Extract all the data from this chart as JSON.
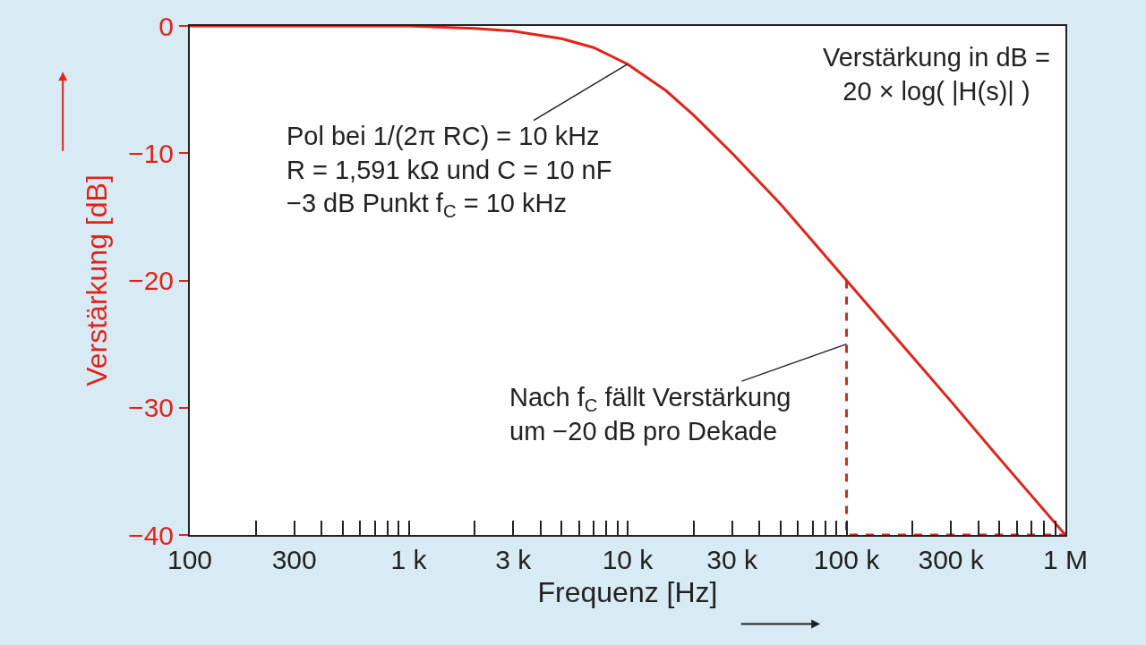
{
  "chart_data": {
    "type": "line",
    "xlabel": "Frequenz [Hz]",
    "ylabel": "Verstärkung [dB]",
    "log": "x",
    "legend": false,
    "marker": "none",
    "xlim": [
      100,
      1000000
    ],
    "ylim": [
      -40,
      0
    ],
    "xticks": [
      {
        "value": 100,
        "label": "100"
      },
      {
        "value": 200,
        "label": null
      },
      {
        "value": 300,
        "label": "300"
      },
      {
        "value": 400,
        "label": null
      },
      {
        "value": 500,
        "label": null
      },
      {
        "value": 600,
        "label": null
      },
      {
        "value": 700,
        "label": null
      },
      {
        "value": 800,
        "label": null
      },
      {
        "value": 900,
        "label": null
      },
      {
        "value": 1000,
        "label": "1 k"
      },
      {
        "value": 2000,
        "label": null
      },
      {
        "value": 3000,
        "label": "3 k"
      },
      {
        "value": 4000,
        "label": null
      },
      {
        "value": 5000,
        "label": null
      },
      {
        "value": 6000,
        "label": null
      },
      {
        "value": 7000,
        "label": null
      },
      {
        "value": 8000,
        "label": null
      },
      {
        "value": 9000,
        "label": null
      },
      {
        "value": 10000,
        "label": "10 k"
      },
      {
        "value": 20000,
        "label": null
      },
      {
        "value": 30000,
        "label": "30 k"
      },
      {
        "value": 40000,
        "label": null
      },
      {
        "value": 50000,
        "label": null
      },
      {
        "value": 60000,
        "label": null
      },
      {
        "value": 70000,
        "label": null
      },
      {
        "value": 80000,
        "label": null
      },
      {
        "value": 90000,
        "label": null
      },
      {
        "value": 100000,
        "label": "100 k"
      },
      {
        "value": 200000,
        "label": null
      },
      {
        "value": 300000,
        "label": "300 k"
      },
      {
        "value": 400000,
        "label": null
      },
      {
        "value": 500000,
        "label": null
      },
      {
        "value": 600000,
        "label": null
      },
      {
        "value": 700000,
        "label": null
      },
      {
        "value": 800000,
        "label": null
      },
      {
        "value": 900000,
        "label": null
      },
      {
        "value": 1000000,
        "label": "1 M"
      }
    ],
    "yticks": [
      {
        "value": 0,
        "label": "0"
      },
      {
        "value": -10,
        "label": "−10"
      },
      {
        "value": -20,
        "label": "−20"
      },
      {
        "value": -30,
        "label": "−30"
      },
      {
        "value": -40,
        "label": "−40"
      }
    ],
    "series": [
      {
        "color": "#e2231a",
        "line_style": "solid",
        "x": [
          100,
          1000,
          2000,
          3000,
          5000,
          7000,
          10000,
          15000,
          20000,
          30000,
          50000,
          100000,
          200000,
          300000,
          500000,
          1000000
        ],
        "values": [
          0,
          0,
          -0.2,
          -0.4,
          -1,
          -1.7,
          -3,
          -5.1,
          -7,
          -10,
          -14,
          -20,
          -26,
          -29.5,
          -34,
          -40
        ]
      },
      {
        "color": "#e2231a",
        "line_style": "dashed",
        "x": [
          100000,
          100000,
          1000000
        ],
        "values": [
          -20,
          -40,
          -40
        ]
      }
    ],
    "annotations": [
      {
        "text": "Pol bei 1/(2π RC) = 10 kHz\nR = 1,591 kΩ und C = 10 nF\n−3 dB Punkt f$_{C}$ = 10 kHz",
        "x": 10000,
        "y": -3
      },
      "Verstärkung in dB =\n20 × log( |H(s)| )",
      {
        "text": "Nach f$_{C}$ fällt Verstärkung\num −20 dB pro Dekade",
        "x": 100000,
        "y": -25
      }
    ]
  }
}
